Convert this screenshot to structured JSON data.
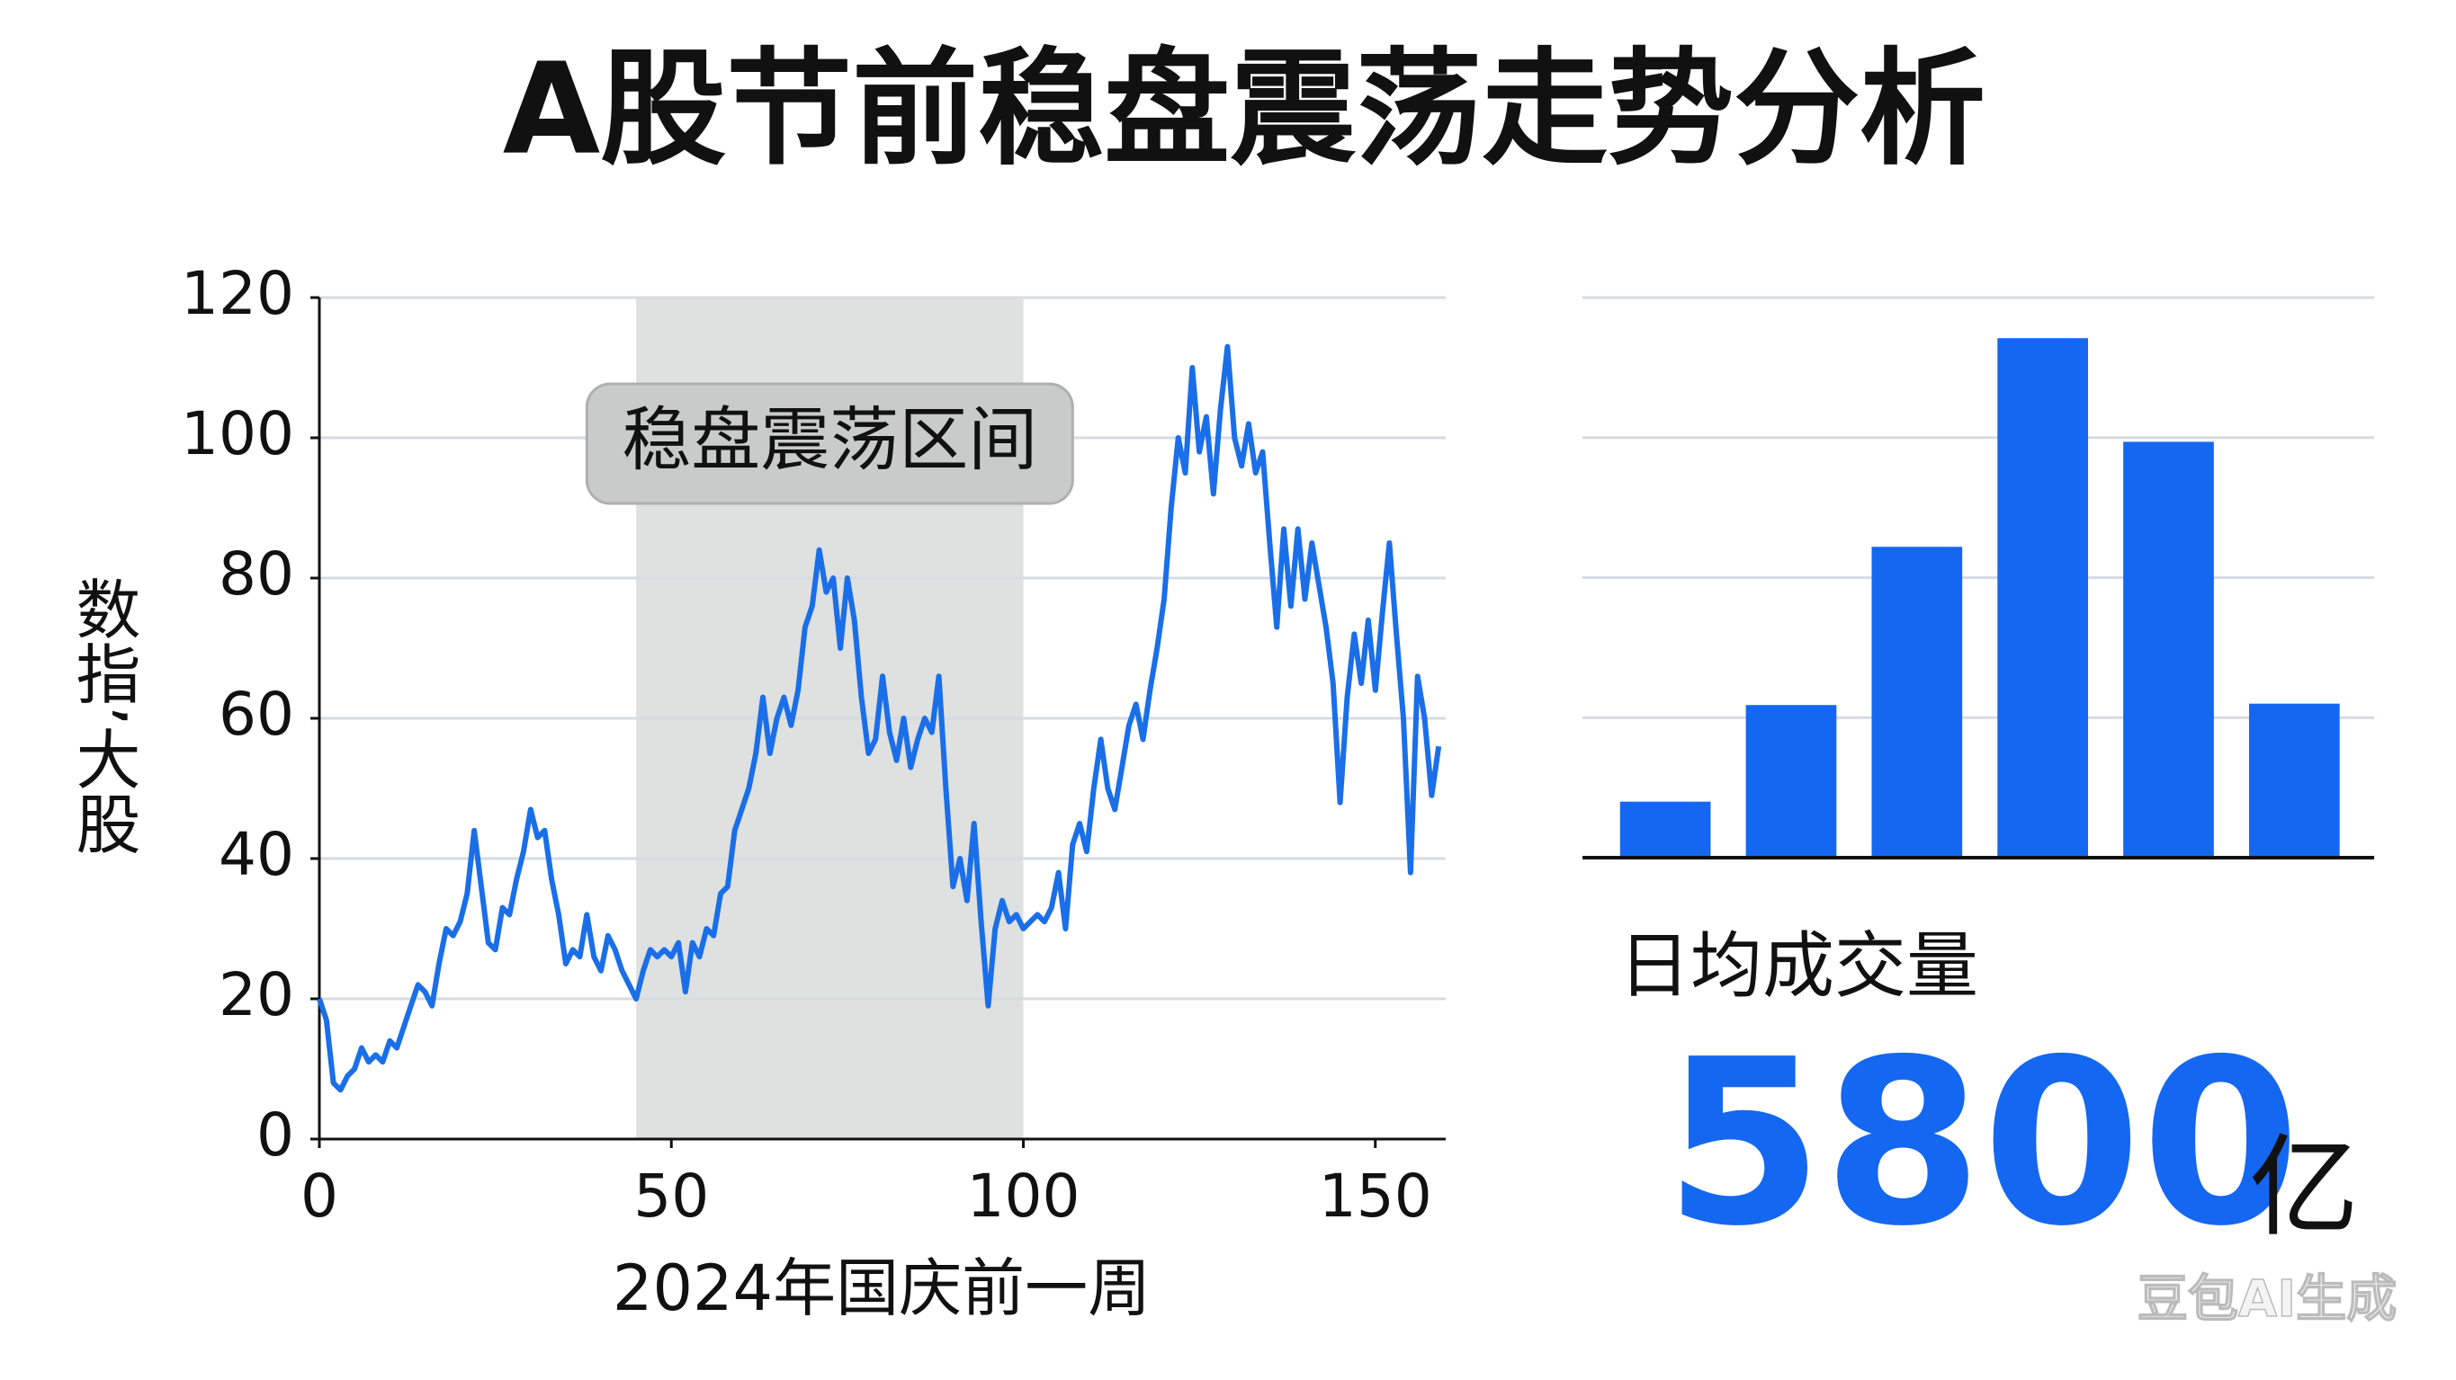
{
  "title": "A股节前稳盘震荡走势分析",
  "chart_data": [
    {
      "type": "line",
      "ylabel": "数指’大股",
      "xlabel": "2024年国庆前一周",
      "color": "#1a6fe8",
      "x": [
        0,
        1,
        2,
        3,
        4,
        5,
        6,
        7,
        8,
        9,
        10,
        11,
        12,
        13,
        14,
        15,
        16,
        17,
        18,
        19,
        20,
        21,
        22,
        23,
        24,
        25,
        26,
        27,
        28,
        29,
        30,
        31,
        32,
        33,
        34,
        35,
        36,
        37,
        38,
        39,
        40,
        41,
        42,
        43,
        44,
        45,
        46,
        47,
        48,
        49,
        50,
        51,
        52,
        53,
        54,
        55,
        56,
        57,
        58,
        59,
        60,
        61,
        62,
        63,
        64,
        65,
        66,
        67,
        68,
        69,
        70,
        71,
        72,
        73,
        74,
        75,
        76,
        77,
        78,
        79,
        80,
        81,
        82,
        83,
        84,
        85,
        86,
        87,
        88,
        89,
        90,
        91,
        92,
        93,
        94,
        95,
        96,
        97,
        98,
        99,
        100,
        101,
        102,
        103,
        104,
        105,
        106,
        107,
        108,
        109,
        110,
        111,
        112,
        113,
        114,
        115,
        116,
        117,
        118,
        119,
        120,
        121,
        122,
        123,
        124,
        125,
        126,
        127,
        128,
        129,
        130,
        131,
        132,
        133,
        134,
        135,
        136,
        137,
        138,
        139,
        140,
        141,
        142,
        143,
        144,
        145,
        146,
        147,
        148,
        149,
        150,
        151,
        152,
        153,
        154,
        155,
        156,
        157,
        158,
        159
      ],
      "values": [
        20,
        17,
        8,
        7,
        9,
        10,
        13,
        11,
        12,
        11,
        14,
        13,
        16,
        19,
        22,
        21,
        19,
        25,
        30,
        29,
        31,
        35,
        44,
        36,
        28,
        27,
        33,
        32,
        37,
        41,
        47,
        43,
        44,
        37,
        32,
        25,
        27,
        26,
        32,
        26,
        24,
        29,
        27,
        24,
        22,
        20,
        24,
        27,
        26,
        27,
        26,
        28,
        21,
        28,
        26,
        30,
        29,
        35,
        36,
        44,
        47,
        50,
        55,
        63,
        55,
        60,
        63,
        59,
        64,
        73,
        76,
        84,
        78,
        80,
        70,
        80,
        74,
        63,
        55,
        57,
        66,
        58,
        54,
        60,
        53,
        57,
        60,
        58,
        66,
        50,
        36,
        40,
        34,
        45,
        31,
        19,
        30,
        34,
        31,
        32,
        30,
        31,
        32,
        31,
        33,
        38,
        30,
        42,
        45,
        41,
        50,
        57,
        50,
        47,
        53,
        59,
        62,
        57,
        64,
        70,
        77,
        90,
        100,
        95,
        110,
        98,
        103,
        92,
        104,
        113,
        100,
        96,
        102,
        95,
        98,
        85,
        73,
        87,
        76,
        87,
        77,
        85,
        79,
        73,
        65,
        48,
        63,
        72,
        65,
        74,
        64,
        75,
        85,
        72,
        60,
        38,
        66,
        60,
        49,
        56
      ],
      "xlim": [
        0,
        160
      ],
      "xticks": [
        0,
        50,
        100,
        150
      ],
      "ylim": [
        0,
        120
      ],
      "yticks": [
        0,
        20,
        40,
        60,
        80,
        100,
        120
      ],
      "grid": true,
      "annotation": {
        "text": "稳盘震荡区间",
        "xrange": [
          45,
          100
        ],
        "color": "#dcdddd"
      }
    },
    {
      "type": "bar",
      "categories": [
        null,
        null,
        null,
        null,
        null,
        null
      ],
      "values": [
        0.4,
        1.09,
        2.22,
        3.71,
        2.97,
        1.1
      ],
      "color": "#1467f0",
      "ylim": [
        0,
        4
      ],
      "yticks": [
        1,
        2,
        3,
        4
      ],
      "grid": true
    }
  ],
  "stat": {
    "label": "日均成交量",
    "value": "5800",
    "unit": "亿"
  },
  "watermark": "豆包AI生成"
}
